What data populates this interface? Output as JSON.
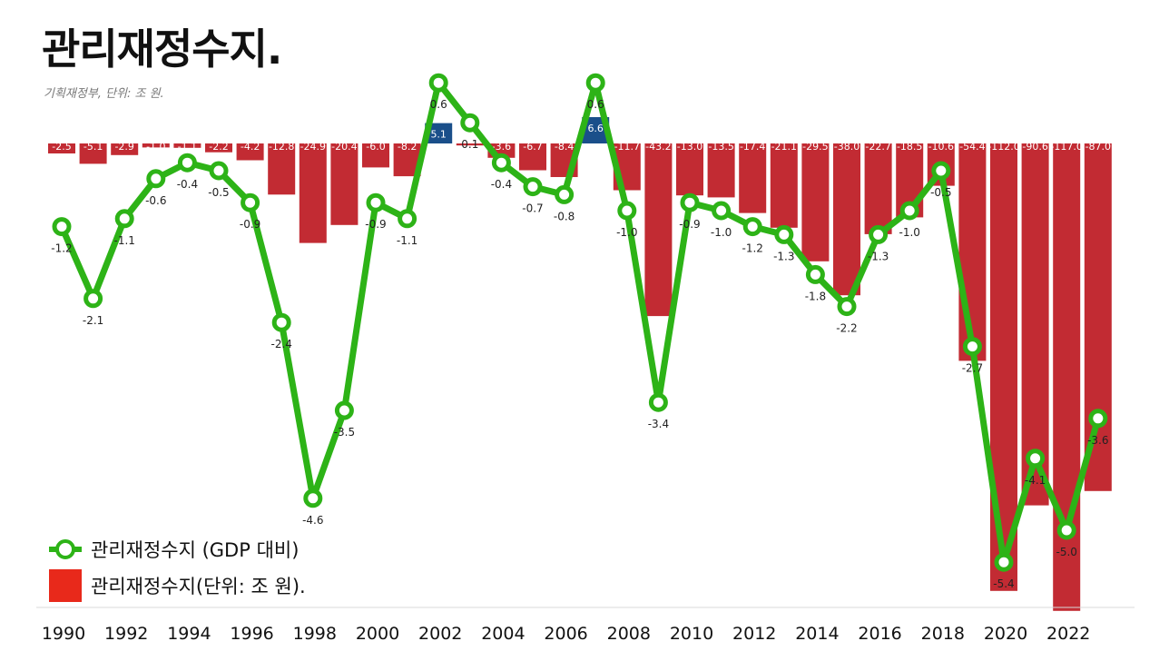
{
  "title": "관리재정수지.",
  "subtitle": "기획재정부, 단위: 조 원.",
  "legend": {
    "line_label": "관리재정수지 (GDP 대비)",
    "bar_label": "관리재정수지(단위: 조 원)."
  },
  "colors": {
    "bar_negative": "#c22b33",
    "bar_positive": "#1a4f8a",
    "line": "#2db317",
    "legend_bar": "#e8291b"
  },
  "chart_data": {
    "type": "bar",
    "years": [
      1990,
      1991,
      1992,
      1993,
      1994,
      1995,
      1996,
      1997,
      1998,
      1999,
      2000,
      2001,
      2002,
      2003,
      2004,
      2005,
      2006,
      2007,
      2008,
      2009,
      2010,
      2011,
      2012,
      2013,
      2014,
      2015,
      2016,
      2017,
      2018,
      2019,
      2020,
      2021,
      2022,
      2023
    ],
    "x_tick_labels": [
      "1990",
      "1992",
      "1994",
      "1996",
      "1998",
      "2000",
      "2002",
      "2004",
      "2006",
      "2008",
      "2010",
      "2012",
      "2014",
      "2016",
      "2018",
      "2020",
      "2022"
    ],
    "series": [
      {
        "name": "관리재정수지(단위: 조 원).",
        "type": "bar",
        "values": [
          -2.5,
          -5.1,
          -2.9,
          -1.0,
          -1.1,
          -2.2,
          -4.2,
          -12.8,
          -24.9,
          -20.4,
          -6.0,
          -8.2,
          5.1,
          -0.5,
          -3.6,
          -6.7,
          -8.4,
          6.6,
          -11.7,
          -43.2,
          -13.0,
          -13.5,
          -17.4,
          -21.1,
          -29.5,
          -38.0,
          -22.7,
          -18.5,
          -10.6,
          -54.4,
          -112.0,
          -90.6,
          -117.0,
          -87.0
        ],
        "labels": [
          "-2.5",
          "-5.1",
          "-2.9",
          "-1.0",
          "-1.1",
          "-2.2",
          "-4.2",
          "-12.8",
          "-24.9",
          "-20.4",
          "-6.0",
          "-8.2",
          "5.1",
          "",
          "-3.6",
          "-6.7",
          "-8.4",
          "6.6",
          "-11.7",
          "-43.2",
          "-13.0",
          "-13.5",
          "-17.4",
          "-21.1",
          "-29.5",
          "-38.0",
          "-22.7",
          "-18.5",
          "-10.6",
          "-54.4",
          "-112.0",
          "-90.6",
          "-117.0",
          "-87.0"
        ]
      },
      {
        "name": "관리재정수지 (GDP 대비)",
        "type": "line",
        "values": [
          -1.2,
          -2.1,
          -1.1,
          -0.6,
          -0.4,
          -0.5,
          -0.9,
          -2.4,
          -4.6,
          -3.5,
          -0.9,
          -1.1,
          0.6,
          0.1,
          -0.4,
          -0.7,
          -0.8,
          0.6,
          -1.0,
          -3.4,
          -0.9,
          -1.0,
          -1.2,
          -1.3,
          -1.8,
          -2.2,
          -1.3,
          -1.0,
          -0.5,
          -2.7,
          -5.4,
          -4.1,
          -5.0,
          -3.6
        ],
        "labels": [
          "-1.2",
          "-2.1",
          "-1.1",
          "-0.6",
          "-0.4",
          "-0.5",
          "-0.9",
          "-2.4",
          "-4.6",
          "-3.5",
          "-0.9",
          "-1.1",
          "0.6",
          "0.1",
          "-0.4",
          "-0.7",
          "-0.8",
          "0.6",
          "-1.0",
          "-3.4",
          "-0.9",
          "-1.0",
          "-1.2",
          "-1.3",
          "-1.8",
          "-2.2",
          "-1.3",
          "-1.0",
          "-0.5",
          "-2.7",
          "-5.4",
          "-4.1",
          "-5.0",
          "-3.6"
        ]
      }
    ]
  }
}
